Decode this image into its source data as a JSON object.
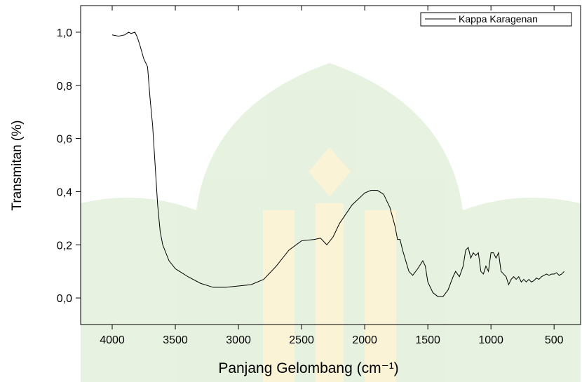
{
  "chart_data": {
    "type": "line",
    "xlabel": "Panjang Gelombang (cm⁻¹)",
    "ylabel": "Transmitan (%)",
    "xlim": [
      4250,
      290
    ],
    "ylim": [
      -0.1,
      1.1
    ],
    "xticks": [
      4000,
      3500,
      3000,
      2500,
      2000,
      1500,
      1000,
      500
    ],
    "yticks": [
      {
        "value": 0,
        "label": "0,0"
      },
      {
        "value": 0.2,
        "label": "0,2"
      },
      {
        "value": 0.4,
        "label": "0,4"
      },
      {
        "value": 0.6,
        "label": "0,6"
      },
      {
        "value": 0.8,
        "label": "0,8"
      },
      {
        "value": 1,
        "label": "1,0"
      }
    ],
    "legend": "top-right",
    "x": [
      4000,
      3950,
      3900,
      3870,
      3850,
      3820,
      3800,
      3780,
      3750,
      3720,
      3700,
      3680,
      3660,
      3640,
      3620,
      3600,
      3550,
      3500,
      3400,
      3300,
      3200,
      3100,
      3000,
      2900,
      2800,
      2700,
      2600,
      2500,
      2400,
      2350,
      2300,
      2250,
      2200,
      2100,
      2000,
      1950,
      1900,
      1850,
      1800,
      1760,
      1740,
      1720,
      1700,
      1650,
      1620,
      1580,
      1540,
      1520,
      1500,
      1460,
      1420,
      1380,
      1340,
      1300,
      1280,
      1250,
      1220,
      1200,
      1180,
      1160,
      1140,
      1120,
      1100,
      1080,
      1060,
      1040,
      1020,
      1000,
      980,
      960,
      940,
      920,
      900,
      880,
      860,
      840,
      820,
      800,
      780,
      760,
      740,
      720,
      700,
      680,
      660,
      640,
      620,
      600,
      580,
      560,
      540,
      520,
      500,
      480,
      460,
      440,
      420
    ],
    "series": [
      {
        "name": "Kappa Karagenan",
        "color": "#000000",
        "values": [
          0.99,
          0.985,
          0.99,
          1.0,
          0.995,
          1.0,
          0.98,
          0.95,
          0.9,
          0.87,
          0.75,
          0.65,
          0.5,
          0.35,
          0.25,
          0.2,
          0.14,
          0.11,
          0.08,
          0.055,
          0.04,
          0.04,
          0.045,
          0.05,
          0.07,
          0.12,
          0.18,
          0.215,
          0.22,
          0.225,
          0.2,
          0.23,
          0.28,
          0.35,
          0.395,
          0.405,
          0.405,
          0.39,
          0.34,
          0.27,
          0.22,
          0.22,
          0.18,
          0.1,
          0.085,
          0.11,
          0.14,
          0.12,
          0.06,
          0.02,
          0.005,
          0.005,
          0.03,
          0.08,
          0.1,
          0.08,
          0.12,
          0.18,
          0.19,
          0.15,
          0.17,
          0.16,
          0.17,
          0.1,
          0.09,
          0.12,
          0.1,
          0.17,
          0.17,
          0.15,
          0.17,
          0.1,
          0.09,
          0.08,
          0.05,
          0.07,
          0.08,
          0.07,
          0.08,
          0.06,
          0.07,
          0.06,
          0.07,
          0.06,
          0.065,
          0.075,
          0.07,
          0.08,
          0.085,
          0.09,
          0.085,
          0.09,
          0.09,
          0.095,
          0.085,
          0.09,
          0.1
        ]
      }
    ]
  }
}
